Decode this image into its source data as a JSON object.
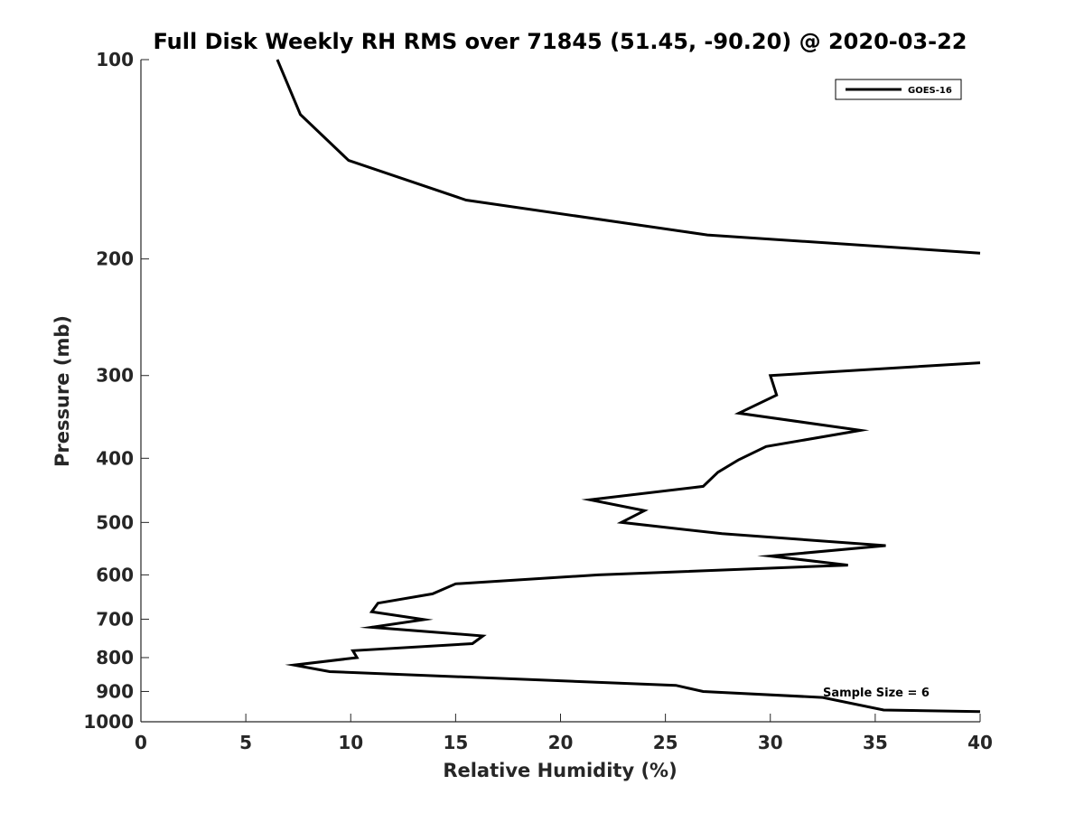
{
  "chart_data": {
    "type": "line",
    "title": "Full Disk Weekly RH RMS over 71845 (51.45, -90.20) @ 2020-03-22",
    "xlabel": "Relative Humidity (%)",
    "ylabel": "Pressure (mb)",
    "xlim": [
      0,
      40
    ],
    "ylim": [
      100,
      1000
    ],
    "yscale": "log",
    "y_reversed": true,
    "grid": false,
    "legend_position": "top-right",
    "x_ticks": [
      0,
      5,
      10,
      15,
      20,
      25,
      30,
      35,
      40
    ],
    "x_tick_labels": [
      "0",
      "5",
      "10",
      "15",
      "20",
      "25",
      "30",
      "35",
      "40"
    ],
    "y_ticks": [
      100,
      200,
      300,
      400,
      500,
      600,
      700,
      800,
      900,
      1000
    ],
    "y_tick_labels": [
      "100",
      "200",
      "300",
      "400",
      "500",
      "600",
      "700",
      "800",
      "900",
      "1000"
    ],
    "annotations": [
      {
        "text": "Sample Size = 6",
        "x": 32.5,
        "y": 900
      }
    ],
    "series": [
      {
        "name": "GOES-16",
        "color": "#000000",
        "segments": [
          [
            {
              "x": 6.5,
              "y": 100
            },
            {
              "x": 7.6,
              "y": 121
            },
            {
              "x": 9.9,
              "y": 142
            },
            {
              "x": 15.5,
              "y": 163
            },
            {
              "x": 27.0,
              "y": 184
            },
            {
              "x": 40.0,
              "y": 196
            }
          ],
          [
            {
              "x": 40.0,
              "y": 287
            },
            {
              "x": 30.0,
              "y": 300
            },
            {
              "x": 30.3,
              "y": 321
            },
            {
              "x": 28.5,
              "y": 342
            },
            {
              "x": 34.3,
              "y": 363
            },
            {
              "x": 29.8,
              "y": 384
            },
            {
              "x": 28.5,
              "y": 402
            },
            {
              "x": 27.5,
              "y": 420
            },
            {
              "x": 26.8,
              "y": 441
            },
            {
              "x": 21.4,
              "y": 462
            },
            {
              "x": 24.0,
              "y": 480
            },
            {
              "x": 22.9,
              "y": 500
            },
            {
              "x": 27.7,
              "y": 520
            },
            {
              "x": 35.5,
              "y": 542
            },
            {
              "x": 30.0,
              "y": 562
            },
            {
              "x": 33.7,
              "y": 580
            },
            {
              "x": 21.8,
              "y": 600
            },
            {
              "x": 15.0,
              "y": 619
            },
            {
              "x": 13.9,
              "y": 641
            },
            {
              "x": 11.3,
              "y": 662
            },
            {
              "x": 11.0,
              "y": 682
            },
            {
              "x": 13.5,
              "y": 701
            },
            {
              "x": 11.0,
              "y": 720
            },
            {
              "x": 16.3,
              "y": 742
            },
            {
              "x": 15.8,
              "y": 762
            },
            {
              "x": 10.1,
              "y": 781
            },
            {
              "x": 10.3,
              "y": 800
            },
            {
              "x": 7.3,
              "y": 821
            },
            {
              "x": 9.0,
              "y": 840
            },
            {
              "x": 25.5,
              "y": 881
            },
            {
              "x": 26.8,
              "y": 900
            },
            {
              "x": 32.5,
              "y": 919
            },
            {
              "x": 35.4,
              "y": 960
            },
            {
              "x": 40.0,
              "y": 965
            }
          ]
        ]
      }
    ]
  }
}
